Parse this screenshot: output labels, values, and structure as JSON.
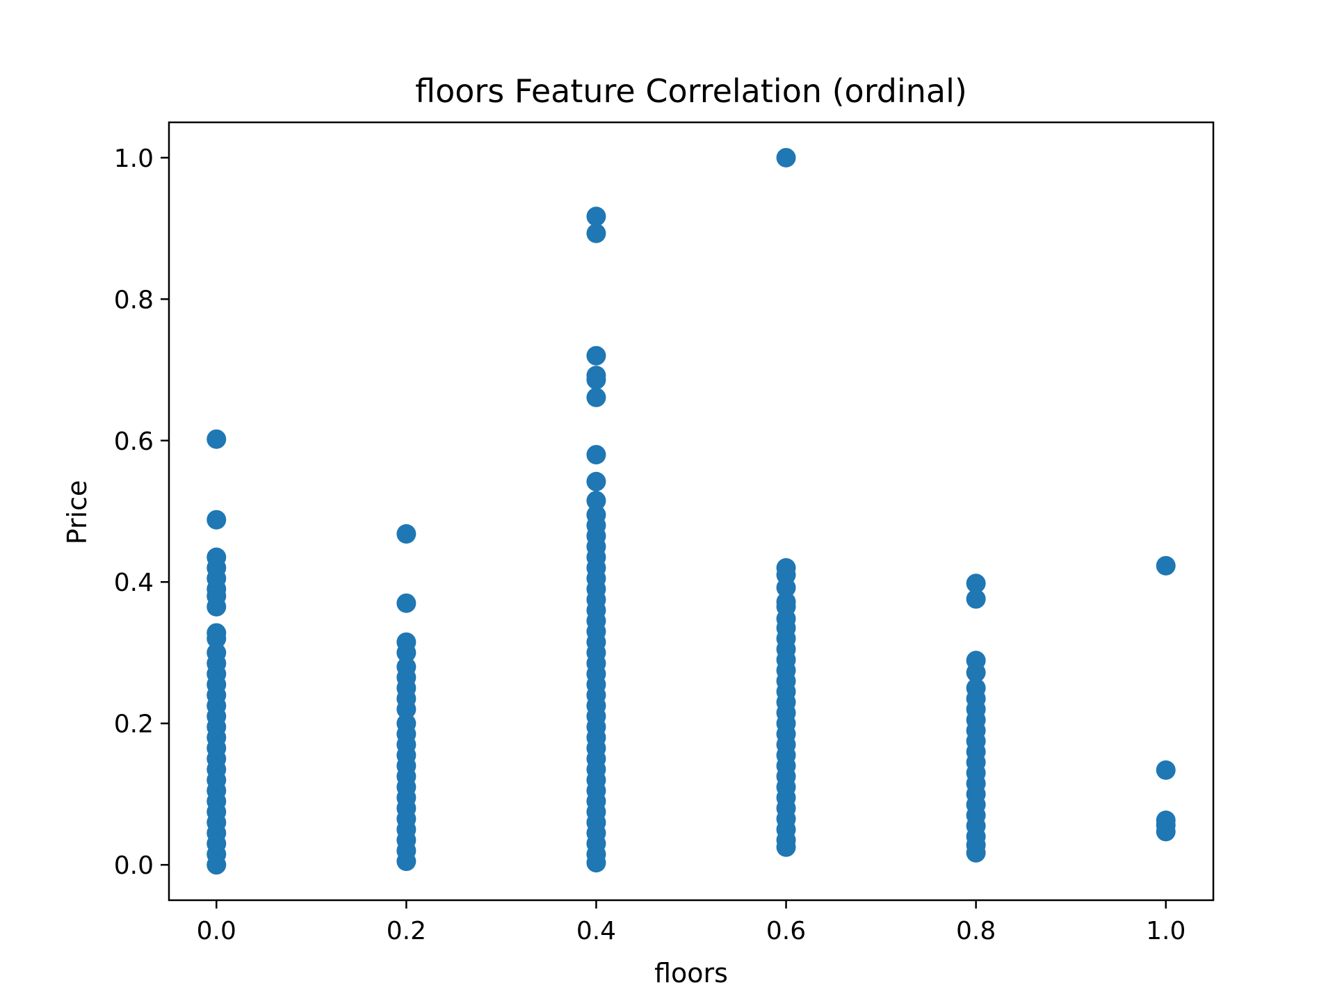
{
  "chart_data": {
    "type": "scatter",
    "title": "floors Feature Correlation (ordinal)",
    "xlabel": "floors",
    "ylabel": "Price",
    "xlim": [
      -0.05,
      1.05
    ],
    "ylim": [
      -0.05,
      1.05
    ],
    "xticks": [
      "0.0",
      "0.2",
      "0.4",
      "0.6",
      "0.8",
      "1.0"
    ],
    "yticks": [
      "0.0",
      "0.2",
      "0.4",
      "0.6",
      "0.8",
      "1.0"
    ],
    "grid": false,
    "legend": "none",
    "color": "#1f77b4",
    "points": [
      {
        "x": 0.0,
        "y": 0.602
      },
      {
        "x": 0.0,
        "y": 0.488
      },
      {
        "x": 0.0,
        "y": 0.435
      },
      {
        "x": 0.0,
        "y": 0.42
      },
      {
        "x": 0.0,
        "y": 0.405
      },
      {
        "x": 0.0,
        "y": 0.39
      },
      {
        "x": 0.0,
        "y": 0.38
      },
      {
        "x": 0.0,
        "y": 0.365
      },
      {
        "x": 0.0,
        "y": 0.328
      },
      {
        "x": 0.0,
        "y": 0.32
      },
      {
        "x": 0.0,
        "y": 0.3
      },
      {
        "x": 0.0,
        "y": 0.285
      },
      {
        "x": 0.0,
        "y": 0.27
      },
      {
        "x": 0.0,
        "y": 0.255
      },
      {
        "x": 0.0,
        "y": 0.24
      },
      {
        "x": 0.0,
        "y": 0.225
      },
      {
        "x": 0.0,
        "y": 0.21
      },
      {
        "x": 0.0,
        "y": 0.195
      },
      {
        "x": 0.0,
        "y": 0.18
      },
      {
        "x": 0.0,
        "y": 0.165
      },
      {
        "x": 0.0,
        "y": 0.15
      },
      {
        "x": 0.0,
        "y": 0.135
      },
      {
        "x": 0.0,
        "y": 0.12
      },
      {
        "x": 0.0,
        "y": 0.105
      },
      {
        "x": 0.0,
        "y": 0.09
      },
      {
        "x": 0.0,
        "y": 0.075
      },
      {
        "x": 0.0,
        "y": 0.06
      },
      {
        "x": 0.0,
        "y": 0.045
      },
      {
        "x": 0.0,
        "y": 0.03
      },
      {
        "x": 0.0,
        "y": 0.015
      },
      {
        "x": 0.0,
        "y": 0.0
      },
      {
        "x": 0.2,
        "y": 0.468
      },
      {
        "x": 0.2,
        "y": 0.37
      },
      {
        "x": 0.2,
        "y": 0.315
      },
      {
        "x": 0.2,
        "y": 0.3
      },
      {
        "x": 0.2,
        "y": 0.28
      },
      {
        "x": 0.2,
        "y": 0.265
      },
      {
        "x": 0.2,
        "y": 0.25
      },
      {
        "x": 0.2,
        "y": 0.235
      },
      {
        "x": 0.2,
        "y": 0.22
      },
      {
        "x": 0.2,
        "y": 0.2
      },
      {
        "x": 0.2,
        "y": 0.185
      },
      {
        "x": 0.2,
        "y": 0.17
      },
      {
        "x": 0.2,
        "y": 0.155
      },
      {
        "x": 0.2,
        "y": 0.14
      },
      {
        "x": 0.2,
        "y": 0.125
      },
      {
        "x": 0.2,
        "y": 0.11
      },
      {
        "x": 0.2,
        "y": 0.095
      },
      {
        "x": 0.2,
        "y": 0.08
      },
      {
        "x": 0.2,
        "y": 0.065
      },
      {
        "x": 0.2,
        "y": 0.05
      },
      {
        "x": 0.2,
        "y": 0.035
      },
      {
        "x": 0.2,
        "y": 0.02
      },
      {
        "x": 0.2,
        "y": 0.005
      },
      {
        "x": 0.4,
        "y": 0.917
      },
      {
        "x": 0.4,
        "y": 0.893
      },
      {
        "x": 0.4,
        "y": 0.72
      },
      {
        "x": 0.4,
        "y": 0.692
      },
      {
        "x": 0.4,
        "y": 0.686
      },
      {
        "x": 0.4,
        "y": 0.661
      },
      {
        "x": 0.4,
        "y": 0.58
      },
      {
        "x": 0.4,
        "y": 0.542
      },
      {
        "x": 0.4,
        "y": 0.515
      },
      {
        "x": 0.4,
        "y": 0.495
      },
      {
        "x": 0.4,
        "y": 0.48
      },
      {
        "x": 0.4,
        "y": 0.465
      },
      {
        "x": 0.4,
        "y": 0.45
      },
      {
        "x": 0.4,
        "y": 0.435
      },
      {
        "x": 0.4,
        "y": 0.42
      },
      {
        "x": 0.4,
        "y": 0.405
      },
      {
        "x": 0.4,
        "y": 0.39
      },
      {
        "x": 0.4,
        "y": 0.375
      },
      {
        "x": 0.4,
        "y": 0.36
      },
      {
        "x": 0.4,
        "y": 0.345
      },
      {
        "x": 0.4,
        "y": 0.33
      },
      {
        "x": 0.4,
        "y": 0.315
      },
      {
        "x": 0.4,
        "y": 0.3
      },
      {
        "x": 0.4,
        "y": 0.285
      },
      {
        "x": 0.4,
        "y": 0.27
      },
      {
        "x": 0.4,
        "y": 0.255
      },
      {
        "x": 0.4,
        "y": 0.24
      },
      {
        "x": 0.4,
        "y": 0.225
      },
      {
        "x": 0.4,
        "y": 0.21
      },
      {
        "x": 0.4,
        "y": 0.195
      },
      {
        "x": 0.4,
        "y": 0.18
      },
      {
        "x": 0.4,
        "y": 0.165
      },
      {
        "x": 0.4,
        "y": 0.15
      },
      {
        "x": 0.4,
        "y": 0.135
      },
      {
        "x": 0.4,
        "y": 0.12
      },
      {
        "x": 0.4,
        "y": 0.105
      },
      {
        "x": 0.4,
        "y": 0.09
      },
      {
        "x": 0.4,
        "y": 0.075
      },
      {
        "x": 0.4,
        "y": 0.06
      },
      {
        "x": 0.4,
        "y": 0.045
      },
      {
        "x": 0.4,
        "y": 0.03
      },
      {
        "x": 0.4,
        "y": 0.015
      },
      {
        "x": 0.4,
        "y": 0.003
      },
      {
        "x": 0.6,
        "y": 1.0
      },
      {
        "x": 0.6,
        "y": 0.42
      },
      {
        "x": 0.6,
        "y": 0.41
      },
      {
        "x": 0.6,
        "y": 0.392
      },
      {
        "x": 0.6,
        "y": 0.372
      },
      {
        "x": 0.6,
        "y": 0.365
      },
      {
        "x": 0.6,
        "y": 0.348
      },
      {
        "x": 0.6,
        "y": 0.335
      },
      {
        "x": 0.6,
        "y": 0.32
      },
      {
        "x": 0.6,
        "y": 0.305
      },
      {
        "x": 0.6,
        "y": 0.29
      },
      {
        "x": 0.6,
        "y": 0.275
      },
      {
        "x": 0.6,
        "y": 0.26
      },
      {
        "x": 0.6,
        "y": 0.245
      },
      {
        "x": 0.6,
        "y": 0.23
      },
      {
        "x": 0.6,
        "y": 0.215
      },
      {
        "x": 0.6,
        "y": 0.2
      },
      {
        "x": 0.6,
        "y": 0.185
      },
      {
        "x": 0.6,
        "y": 0.17
      },
      {
        "x": 0.6,
        "y": 0.155
      },
      {
        "x": 0.6,
        "y": 0.14
      },
      {
        "x": 0.6,
        "y": 0.125
      },
      {
        "x": 0.6,
        "y": 0.11
      },
      {
        "x": 0.6,
        "y": 0.095
      },
      {
        "x": 0.6,
        "y": 0.08
      },
      {
        "x": 0.6,
        "y": 0.065
      },
      {
        "x": 0.6,
        "y": 0.05
      },
      {
        "x": 0.6,
        "y": 0.035
      },
      {
        "x": 0.6,
        "y": 0.025
      },
      {
        "x": 0.8,
        "y": 0.398
      },
      {
        "x": 0.8,
        "y": 0.376
      },
      {
        "x": 0.8,
        "y": 0.289
      },
      {
        "x": 0.8,
        "y": 0.272
      },
      {
        "x": 0.8,
        "y": 0.25
      },
      {
        "x": 0.8,
        "y": 0.235
      },
      {
        "x": 0.8,
        "y": 0.22
      },
      {
        "x": 0.8,
        "y": 0.205
      },
      {
        "x": 0.8,
        "y": 0.19
      },
      {
        "x": 0.8,
        "y": 0.175
      },
      {
        "x": 0.8,
        "y": 0.16
      },
      {
        "x": 0.8,
        "y": 0.145
      },
      {
        "x": 0.8,
        "y": 0.13
      },
      {
        "x": 0.8,
        "y": 0.115
      },
      {
        "x": 0.8,
        "y": 0.1
      },
      {
        "x": 0.8,
        "y": 0.085
      },
      {
        "x": 0.8,
        "y": 0.07
      },
      {
        "x": 0.8,
        "y": 0.055
      },
      {
        "x": 0.8,
        "y": 0.04
      },
      {
        "x": 0.8,
        "y": 0.028
      },
      {
        "x": 0.8,
        "y": 0.017
      },
      {
        "x": 1.0,
        "y": 0.423
      },
      {
        "x": 1.0,
        "y": 0.134
      },
      {
        "x": 1.0,
        "y": 0.063
      },
      {
        "x": 1.0,
        "y": 0.056
      },
      {
        "x": 1.0,
        "y": 0.047
      }
    ]
  }
}
